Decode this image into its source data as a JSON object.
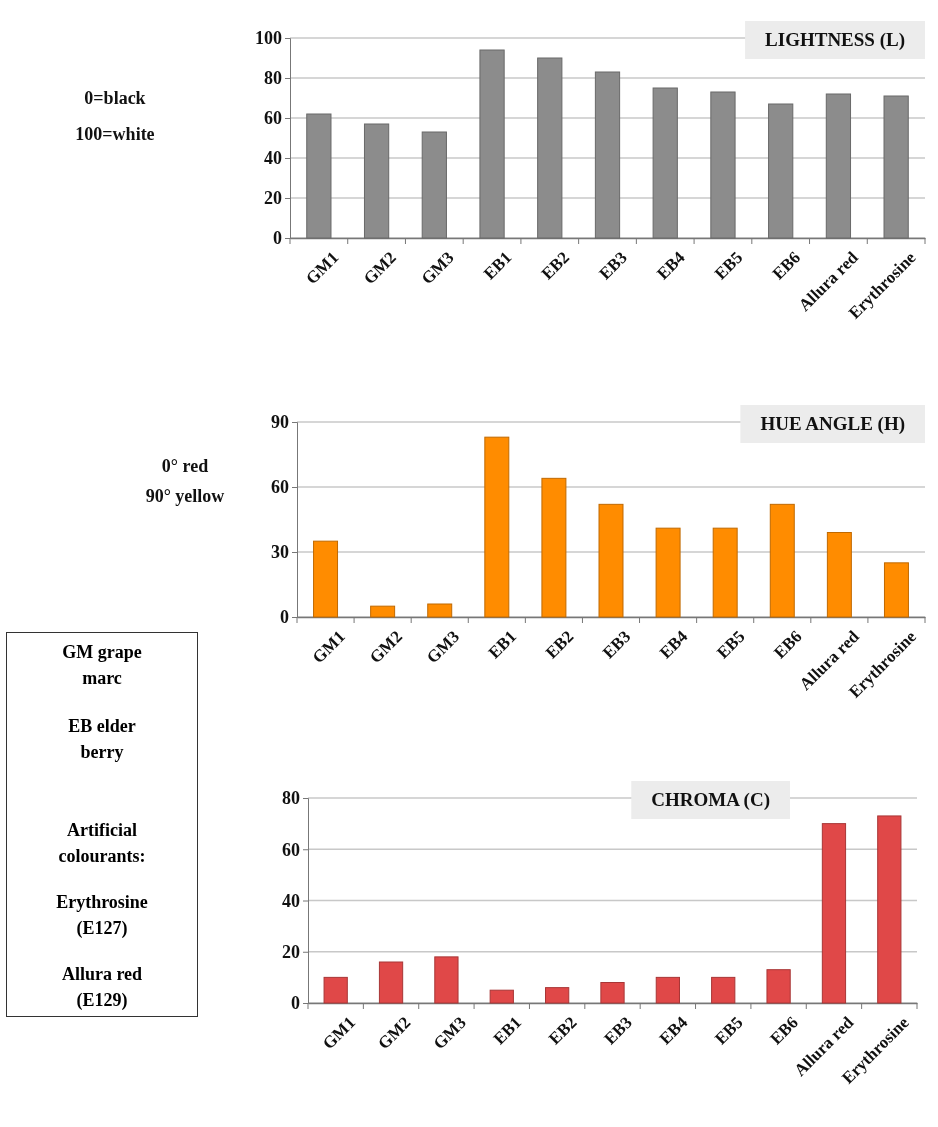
{
  "chart_data": [
    {
      "type": "bar",
      "title": "LIGHTNESS (L)",
      "annotations": [
        "0=black",
        "100=white"
      ],
      "categories": [
        "GM1",
        "GM2",
        "GM3",
        "EB1",
        "EB2",
        "EB3",
        "EB4",
        "EB5",
        "EB6",
        "Allura red",
        "Erythrosine"
      ],
      "series": [
        {
          "color": "#8c8c8c",
          "values": [
            62,
            57,
            53,
            94,
            90,
            83,
            75,
            73,
            67,
            72,
            71
          ]
        }
      ],
      "ylim": [
        0,
        100
      ],
      "yticks": [
        0,
        20,
        40,
        60,
        80,
        100
      ],
      "grid": "y"
    },
    {
      "type": "bar",
      "title": "HUE ANGLE (H)",
      "annotations": [
        "0° red",
        "90° yellow"
      ],
      "categories": [
        "GM1",
        "GM2",
        "GM3",
        "EB1",
        "EB2",
        "EB3",
        "EB4",
        "EB5",
        "EB6",
        "Allura red",
        "Erythrosine"
      ],
      "series": [
        {
          "color": "#ff8c00",
          "values": [
            35,
            5,
            6,
            83,
            64,
            52,
            41,
            41,
            52,
            39,
            25
          ]
        }
      ],
      "ylim": [
        0,
        90
      ],
      "yticks": [
        0,
        30,
        60,
        90
      ],
      "grid": "y"
    },
    {
      "type": "bar",
      "title": "CHROMA (C)",
      "categories": [
        "GM1",
        "GM2",
        "GM3",
        "EB1",
        "EB2",
        "EB3",
        "EB4",
        "EB5",
        "EB6",
        "Allura red",
        "Erythrosine"
      ],
      "series": [
        {
          "color": "#e04848",
          "values": [
            10,
            16,
            18,
            5,
            6,
            8,
            10,
            10,
            13,
            70,
            73
          ]
        }
      ],
      "ylim": [
        0,
        80
      ],
      "yticks": [
        0,
        20,
        40,
        60,
        80
      ],
      "grid": "y"
    },
    {
      "type": "other",
      "annotations": [
        "GM grape marc",
        "EB elder berry",
        "Artificial colourants:",
        "Erythrosine (E127)",
        "Allura red (E129)"
      ]
    }
  ]
}
